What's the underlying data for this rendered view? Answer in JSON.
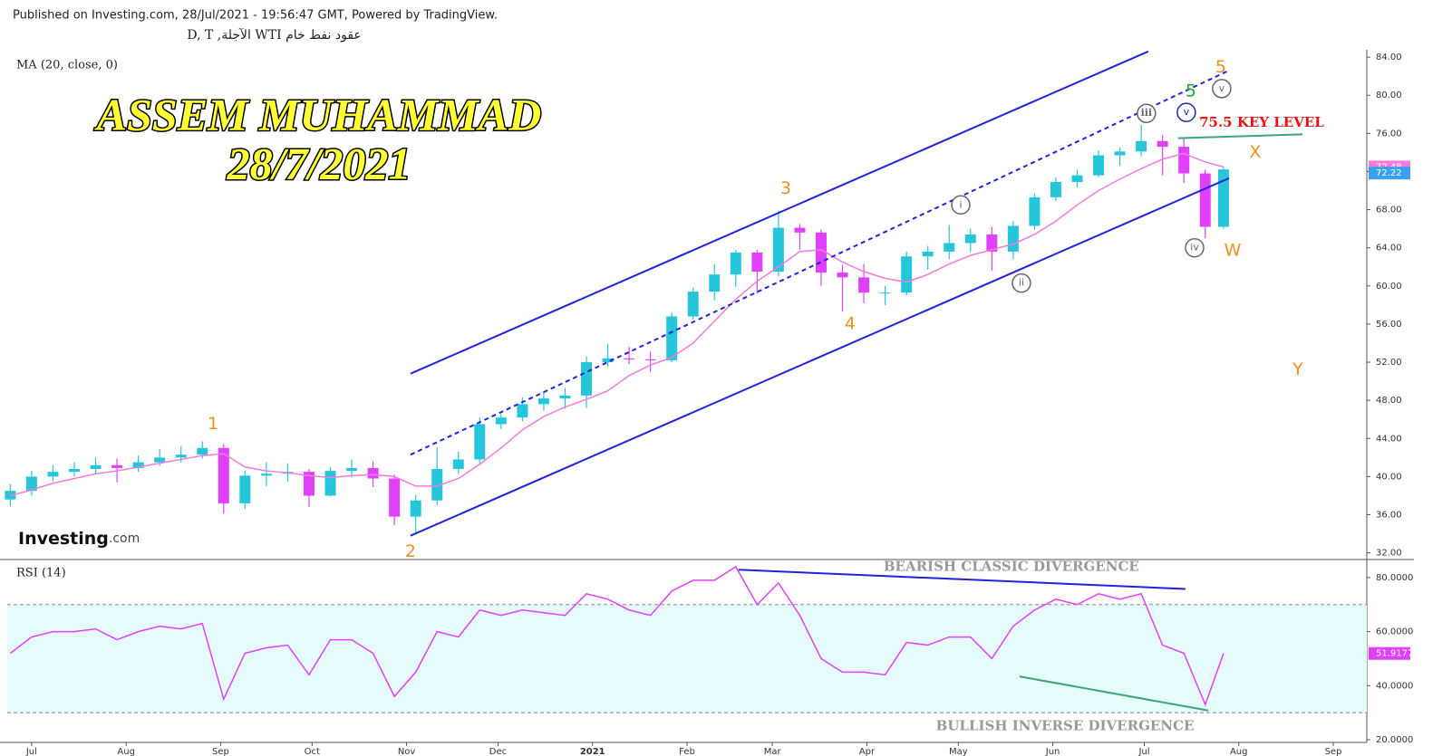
{
  "header": {
    "published": "Published on Investing.com, 28/Jul/2021 - 19:56:47 GMT, Powered by TradingView.",
    "symbol": "عقود نفط خام WTI الآجلة, D, T",
    "brand": "Investing",
    "brand_suffix": ".com"
  },
  "chart_data": {
    "type": "candlestick",
    "title": "ASSEM MUHAMMAD",
    "subtitle": "28/7/2021",
    "up_color": "#26c6da",
    "down_color": "#e040fb",
    "x": [
      -7,
      0,
      7,
      14,
      21,
      28,
      35,
      42,
      49,
      56,
      63,
      70,
      77,
      84,
      91,
      98,
      105,
      112,
      119,
      126,
      133,
      140,
      147,
      154,
      161,
      168,
      175,
      182,
      189,
      196,
      203,
      210,
      217,
      224,
      231,
      238,
      245,
      252,
      259,
      266,
      273,
      280,
      287,
      294,
      301,
      308,
      315,
      322,
      329,
      336,
      343,
      350,
      357,
      364,
      371,
      378,
      385,
      391
    ],
    "open": [
      37.6,
      38.5,
      40.0,
      40.5,
      40.8,
      41.2,
      40.9,
      41.5,
      42.0,
      42.3,
      43.0,
      37.2,
      40.1,
      40.3,
      40.5,
      38.0,
      40.6,
      40.9,
      39.8,
      35.8,
      37.5,
      40.8,
      41.8,
      45.5,
      46.2,
      47.6,
      48.2,
      48.5,
      52.0,
      52.4,
      52.3,
      52.2,
      56.8,
      59.4,
      61.2,
      63.5,
      61.5,
      66.1,
      65.6,
      61.4,
      60.9,
      59.3,
      59.3,
      63.1,
      63.6,
      64.5,
      65.4,
      63.6,
      66.3,
      69.3,
      70.9,
      71.6,
      73.7,
      74.1,
      75.2,
      74.6,
      71.8,
      66.2
    ],
    "high": [
      39.2,
      40.6,
      41.2,
      41.5,
      42.0,
      41.9,
      42.2,
      42.9,
      43.2,
      43.7,
      43.4,
      40.6,
      41.5,
      41.4,
      40.8,
      41.0,
      41.8,
      41.6,
      40.2,
      38.1,
      43.1,
      42.6,
      46.2,
      46.6,
      48.3,
      48.9,
      49.3,
      52.6,
      53.9,
      53.6,
      53.1,
      57.2,
      59.8,
      62.3,
      63.8,
      63.8,
      67.9,
      66.5,
      65.9,
      62.2,
      62.3,
      60.0,
      63.6,
      64.2,
      66.4,
      66.0,
      66.2,
      66.8,
      69.7,
      71.4,
      72.2,
      74.2,
      74.5,
      76.9,
      75.8,
      75.5,
      72.2,
      72.5
    ],
    "low": [
      36.9,
      38.0,
      39.5,
      40.0,
      40.2,
      39.4,
      40.5,
      41.1,
      41.5,
      41.9,
      36.1,
      36.6,
      39.0,
      39.5,
      36.8,
      37.9,
      39.9,
      38.9,
      34.9,
      34.0,
      37.0,
      40.3,
      41.4,
      45.0,
      45.8,
      46.9,
      47.1,
      47.2,
      51.5,
      51.8,
      51.0,
      52.0,
      56.5,
      58.5,
      59.9,
      59.2,
      61.0,
      63.8,
      60.0,
      57.3,
      58.2,
      58.0,
      59.0,
      61.7,
      62.8,
      63.6,
      61.6,
      62.8,
      65.9,
      68.9,
      70.3,
      71.4,
      72.6,
      73.6,
      71.6,
      70.8,
      65.0,
      66.0
    ],
    "close": [
      38.5,
      40.0,
      40.5,
      40.8,
      41.2,
      40.9,
      41.5,
      42.0,
      42.3,
      43.0,
      37.2,
      40.1,
      40.3,
      40.5,
      38.0,
      40.6,
      40.9,
      39.8,
      35.8,
      37.5,
      40.8,
      41.8,
      45.5,
      46.2,
      47.6,
      48.2,
      48.5,
      52.0,
      52.4,
      52.3,
      52.2,
      56.8,
      59.4,
      61.2,
      63.5,
      61.5,
      66.1,
      65.6,
      61.4,
      60.9,
      59.3,
      59.3,
      63.1,
      63.6,
      64.5,
      65.4,
      63.6,
      66.3,
      69.3,
      70.9,
      71.6,
      73.7,
      74.1,
      75.2,
      74.6,
      71.8,
      66.2,
      72.22
    ],
    "ma": {
      "name": "MA (20, close, 0)",
      "color": "#f27bd9",
      "values": [
        38.0,
        38.6,
        39.3,
        39.8,
        40.3,
        40.6,
        41.0,
        41.4,
        41.8,
        42.2,
        42.4,
        41.0,
        40.6,
        40.4,
        40.1,
        39.9,
        40.1,
        40.2,
        40.0,
        39.0,
        39.0,
        39.8,
        41.3,
        43.0,
        44.9,
        46.3,
        47.3,
        48.1,
        49.0,
        50.6,
        51.7,
        52.5,
        54.0,
        56.3,
        58.6,
        60.5,
        62.0,
        63.6,
        63.8,
        62.5,
        61.5,
        60.8,
        60.4,
        61.2,
        62.3,
        63.2,
        63.8,
        64.4,
        65.4,
        66.8,
        68.5,
        70.0,
        71.2,
        72.3,
        73.3,
        73.9,
        73.0,
        72.48
      ]
    },
    "xlim": [
      -8,
      438
    ],
    "xticks": [
      {
        "value": 0,
        "label": "Jul"
      },
      {
        "value": 31,
        "label": "Aug"
      },
      {
        "value": 62,
        "label": "Sep"
      },
      {
        "value": 92,
        "label": "Oct"
      },
      {
        "value": 123,
        "label": "Nov"
      },
      {
        "value": 153,
        "label": "Dec"
      },
      {
        "value": 184,
        "label": "2021"
      },
      {
        "value": 215,
        "label": "Feb"
      },
      {
        "value": 243,
        "label": "Mar"
      },
      {
        "value": 274,
        "label": "Apr"
      },
      {
        "value": 304,
        "label": "May"
      },
      {
        "value": 335,
        "label": "Jun"
      },
      {
        "value": 365,
        "label": "Jul"
      },
      {
        "value": 396,
        "label": "Aug"
      },
      {
        "value": 427,
        "label": "Sep"
      }
    ],
    "ylim": [
      31.3,
      84.77
    ],
    "yticks": [
      {
        "value": 32,
        "label": "32.00"
      },
      {
        "value": 36,
        "label": "36.00"
      },
      {
        "value": 40,
        "label": "40.00"
      },
      {
        "value": 44,
        "label": "44.00"
      },
      {
        "value": 48,
        "label": "48.00"
      },
      {
        "value": 52,
        "label": "52.00"
      },
      {
        "value": 56,
        "label": "56.00"
      },
      {
        "value": 60,
        "label": "60.00"
      },
      {
        "value": 64,
        "label": "64.00"
      },
      {
        "value": 68,
        "label": "68.00"
      },
      {
        "value": 72,
        "label": "72.00"
      },
      {
        "value": 76,
        "label": "76.00"
      },
      {
        "value": 80,
        "label": "80.00"
      },
      {
        "value": 84,
        "label": "84.00"
      }
    ],
    "trendlines": [
      {
        "color": "#2222dd",
        "dashed": false,
        "points": [
          [
            124.3,
            50.8
          ],
          [
            366.3,
            84.6
          ]
        ]
      },
      {
        "color": "#2222dd",
        "dashed": false,
        "points": [
          [
            124.3,
            33.8
          ],
          [
            392.8,
            71.3
          ]
        ]
      },
      {
        "color": "#2222dd",
        "dashed": true,
        "points": [
          [
            124.3,
            42.3
          ],
          [
            392.8,
            82.6
          ]
        ]
      },
      {
        "color": "#3aa57a",
        "dashed": false,
        "points": [
          [
            376.1,
            75.5
          ],
          [
            416.9,
            75.9
          ]
        ]
      }
    ],
    "annotations": [
      {
        "text": "1",
        "x": 59.5,
        "y": 45.5,
        "color": "#f0901e",
        "circled": false
      },
      {
        "text": "2",
        "x": 124.3,
        "y": 32.1,
        "color": "#f0901e",
        "circled": false
      },
      {
        "text": "3",
        "x": 247.4,
        "y": 70.2,
        "color": "#f0901e",
        "circled": false
      },
      {
        "text": "4",
        "x": 268.5,
        "y": 56.0,
        "color": "#f0901e",
        "circled": false
      },
      {
        "text": "5",
        "x": 390.1,
        "y": 82.9,
        "color": "#f0901e",
        "circled": false
      },
      {
        "text": "5",
        "x": 380.3,
        "y": 80.4,
        "color": "#22aa22",
        "circled": false
      },
      {
        "text": "X",
        "x": 401.4,
        "y": 74.0,
        "color": "#f0901e",
        "circled": false
      },
      {
        "text": "Y",
        "x": 415.4,
        "y": 51.2,
        "color": "#f0901e",
        "circled": false
      },
      {
        "text": "W",
        "x": 394.0,
        "y": 63.7,
        "color": "#f0901e",
        "circled": false
      },
      {
        "text": "i",
        "x": 304.8,
        "y": 68.5,
        "color": "#666666",
        "circled": true
      },
      {
        "text": "ii",
        "x": 324.7,
        "y": 60.3,
        "color": "#666666",
        "circled": true
      },
      {
        "text": "iii",
        "x": 365.7,
        "y": 78.1,
        "color": "#666666",
        "circled": true
      },
      {
        "text": "iv",
        "x": 381.5,
        "y": 64.0,
        "color": "#666666",
        "circled": true
      },
      {
        "text": "v",
        "x": 390.4,
        "y": 80.7,
        "color": "#666666",
        "circled": true
      },
      {
        "text": "v",
        "x": 378.8,
        "y": 78.2,
        "color": "#2222aa",
        "circled": true
      },
      {
        "text": "75.5 KEY LEVEL",
        "x": 403.5,
        "y": 77.1,
        "color": "#ee1111",
        "circled": false
      }
    ],
    "rsi": {
      "name": "RSI (14)",
      "color": "#e040fb",
      "band": [
        30,
        70
      ],
      "band_color": "#e6fbfb",
      "values": [
        52,
        58,
        60,
        60,
        61,
        57,
        60,
        62,
        61,
        63,
        35,
        52,
        54,
        55,
        44,
        57,
        57,
        52,
        36,
        45,
        60,
        58,
        68,
        66,
        68,
        67,
        66,
        74,
        72,
        68,
        66,
        75,
        79,
        79,
        84,
        70,
        78,
        66,
        50,
        45,
        45,
        44,
        56,
        55,
        58,
        58,
        50,
        62,
        68,
        72,
        70,
        74,
        72,
        74,
        55,
        52,
        33,
        51.9177
      ],
      "ylim": [
        19,
        86
      ],
      "yticks": [
        {
          "value": 20,
          "label": "20.0000"
        },
        {
          "value": 40,
          "label": "40.0000"
        },
        {
          "value": 60,
          "label": "60.0000"
        },
        {
          "value": 80,
          "label": "80.0000"
        }
      ],
      "trendlines": [
        {
          "color": "#2222dd",
          "dashed": false,
          "points": [
            [
              231.9,
              82.9
            ],
            [
              378.5,
              75.8
            ]
          ]
        },
        {
          "color": "#3aa57a",
          "dashed": false,
          "points": [
            [
              324.1,
              43.4
            ],
            [
              386.0,
              30.8
            ]
          ]
        }
      ],
      "annotations": [
        {
          "text": "BEARISH CLASSIC DIVERGENCE",
          "x": 321.4,
          "y": 83.8,
          "color": "#999999",
          "circled": false
        },
        {
          "text": "BULLISH INVERSE DIVERGENCE",
          "x": 339.0,
          "y": 24.8,
          "color": "#999999",
          "circled": false
        }
      ]
    }
  }
}
